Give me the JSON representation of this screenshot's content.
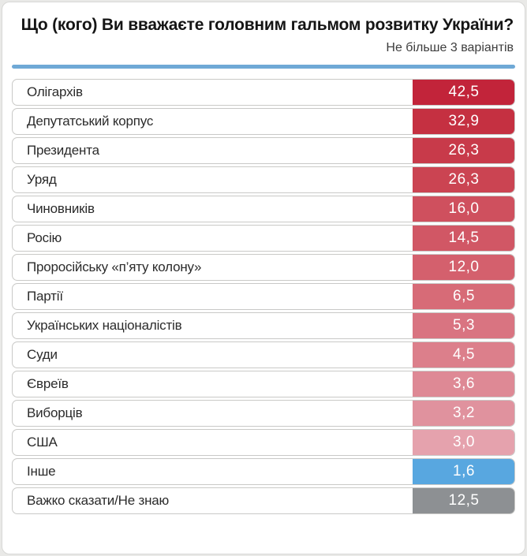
{
  "header": {
    "title": "Що (кого) Ви вважаєте головним гальмом розвитку України?",
    "subtitle": "Не більше 3 варіантів"
  },
  "accent_colors": {
    "divider_blue": "#6fa9d6",
    "other_blue": "#58a7e0",
    "dont_know_gray": "#8d9093",
    "max_red": "#c2243a",
    "min_red": "#e5a2ad"
  },
  "chart_data": {
    "type": "bar",
    "orientation": "horizontal",
    "title": "Що (кого) Ви вважаєте головним гальмом розвитку України?",
    "subtitle": "Не більше 3 варіантів",
    "value_format": "comma-decimal",
    "categories": [
      "Олігархів",
      "Депутатський корпус",
      "Президента",
      "Уряд",
      "Чиновників",
      "Росію",
      "Проросійську «п’яту колону»",
      "Партії",
      "Українських націоналістів",
      "Суди",
      "Євреїв",
      "Виборців",
      "США",
      "Інше",
      "Важко сказати/Не знаю"
    ],
    "values": [
      42.5,
      32.9,
      26.3,
      26.3,
      16.0,
      14.5,
      12.0,
      6.5,
      5.3,
      4.5,
      3.6,
      3.2,
      3.0,
      1.6,
      12.5
    ],
    "rows": [
      {
        "label": "Олігархів",
        "value": 42.5,
        "display": "42,5",
        "color": "#c2243a"
      },
      {
        "label": "Депутатський корпус",
        "value": 32.9,
        "display": "32,9",
        "color": "#c53041"
      },
      {
        "label": "Президента",
        "value": 26.3,
        "display": "26,3",
        "color": "#c83a4a"
      },
      {
        "label": "Уряд",
        "value": 26.3,
        "display": "26,3",
        "color": "#cb4452"
      },
      {
        "label": "Чиновників",
        "value": 16.0,
        "display": "16,0",
        "color": "#cf505e"
      },
      {
        "label": "Росію",
        "value": 14.5,
        "display": "14,5",
        "color": "#d15765"
      },
      {
        "label": "Проросійську «п’яту колону»",
        "value": 12.0,
        "display": "12,0",
        "color": "#d4606d"
      },
      {
        "label": "Партії",
        "value": 6.5,
        "display": "6,5",
        "color": "#d76b77"
      },
      {
        "label": "Українських націоналістів",
        "value": 5.3,
        "display": "5,3",
        "color": "#d97481"
      },
      {
        "label": "Суди",
        "value": 4.5,
        "display": "4,5",
        "color": "#dc7f8b"
      },
      {
        "label": "Євреїв",
        "value": 3.6,
        "display": "3,6",
        "color": "#de8995"
      },
      {
        "label": "Виборців",
        "value": 3.2,
        "display": "3,2",
        "color": "#e0929e"
      },
      {
        "label": "США",
        "value": 3.0,
        "display": "3,0",
        "color": "#e5a2ad"
      },
      {
        "label": "Інше",
        "value": 1.6,
        "display": "1,6",
        "color": "#58a7e0"
      },
      {
        "label": "Важко сказати/Не знаю",
        "value": 12.5,
        "display": "12,5",
        "color": "#8d9093"
      }
    ]
  }
}
